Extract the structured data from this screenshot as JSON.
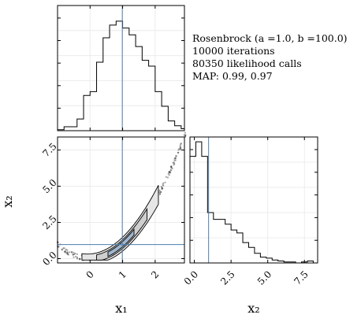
{
  "info": {
    "title": "Rosenbrock (a =1.0, b =100.0)",
    "iterations": "10000 iterations",
    "calls": "80350 likelihood calls",
    "map": "MAP: 0.99, 0.97"
  },
  "chart_data": [
    {
      "type": "histogram",
      "panel": "x1 marginal",
      "xlim": [
        -1.0,
        2.9
      ],
      "bin_edges": [
        -1.0,
        -0.8,
        -0.6,
        -0.4,
        -0.2,
        0.0,
        0.2,
        0.4,
        0.6,
        0.8,
        1.0,
        1.2,
        1.4,
        1.6,
        1.8,
        2.0,
        2.2,
        2.4,
        2.6,
        2.8,
        3.0
      ],
      "counts": [
        1,
        4,
        4,
        12,
        36,
        40,
        70,
        95,
        108,
        112,
        105,
        98,
        86,
        72,
        66,
        40,
        25,
        10,
        5,
        2
      ],
      "truth_line": 0.99,
      "grid": true
    },
    {
      "type": "contour-scatter",
      "panel": "x1 vs x2 joint",
      "xlabel": "x₁",
      "ylabel": "x₂",
      "xlim": [
        -1.0,
        2.9
      ],
      "ylim": [
        -0.3,
        8.4
      ],
      "xticks": [
        0,
        1,
        2
      ],
      "yticks": [
        0.0,
        2.5,
        5.0,
        7.5
      ],
      "xtick_labels": [
        "0",
        "1",
        "2"
      ],
      "ytick_labels": [
        "0.0",
        "2.5",
        "5.0",
        "7.5"
      ],
      "curve": "x2 = x1^2",
      "truth_point": [
        0.99,
        0.97
      ],
      "grid": true
    },
    {
      "type": "histogram",
      "panel": "x2 marginal",
      "xlabel": "x₂",
      "xlim": [
        -0.3,
        8.4
      ],
      "xticks": [
        0.0,
        2.5,
        5.0,
        7.5
      ],
      "xtick_labels": [
        "0.0",
        "2.5",
        "5.0",
        "7.5"
      ],
      "bin_edges": [
        -0.3,
        0.1,
        0.5,
        0.9,
        1.3,
        1.7,
        2.1,
        2.5,
        2.9,
        3.3,
        3.7,
        4.1,
        4.5,
        4.9,
        5.3,
        5.7,
        6.1,
        6.5,
        6.9,
        7.3,
        7.7,
        8.1
      ],
      "counts": [
        110,
        125,
        110,
        52,
        45,
        45,
        40,
        34,
        31,
        21,
        16,
        10,
        6,
        5,
        3,
        2,
        1,
        1,
        0,
        1,
        2
      ],
      "truth_line": 0.97,
      "grid": true
    }
  ]
}
